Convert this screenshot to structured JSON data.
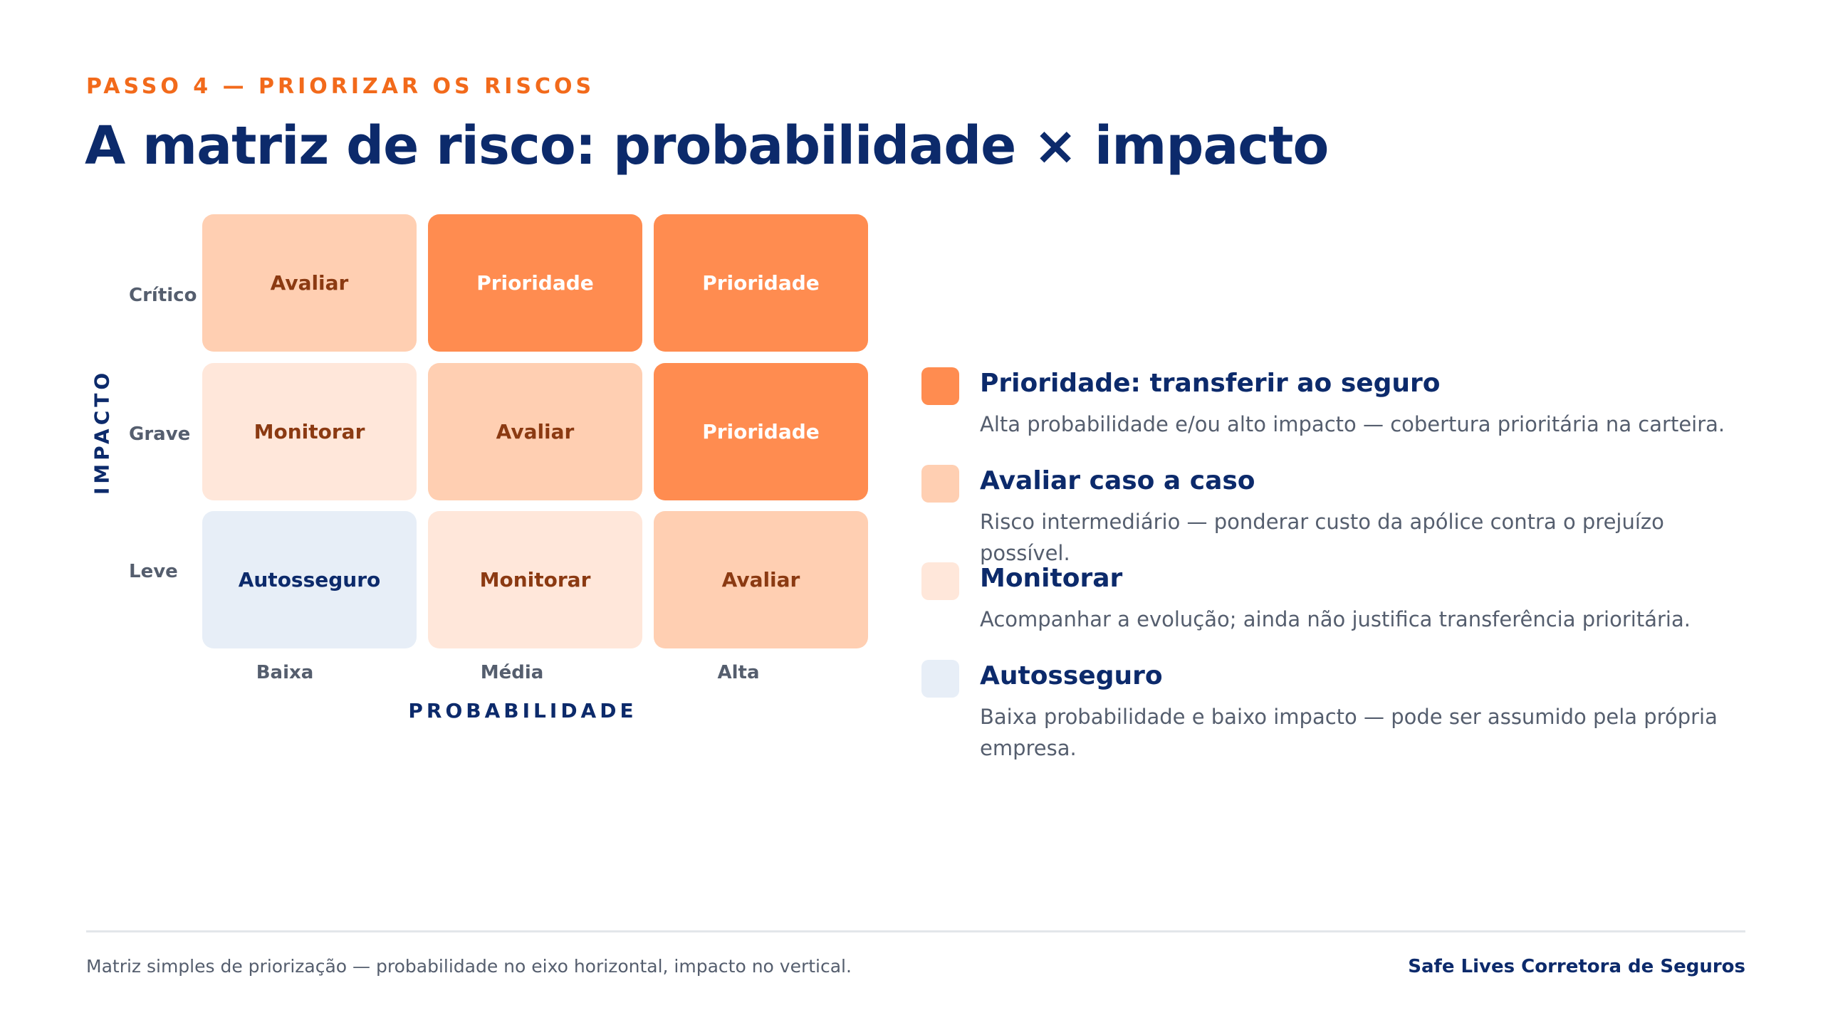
{
  "header": {
    "eyebrow": "PASSO 4 — PRIORIZAR OS RISCOS",
    "title": "A matriz de risco: probabilidade × impacto"
  },
  "matrix": {
    "y_axis_label": "IMPACTO",
    "x_axis_label": "PROBABILIDADE",
    "rows": [
      "Crítico",
      "Grave",
      "Leve"
    ],
    "columns": [
      "Baixa",
      "Média",
      "Alta"
    ],
    "cells": [
      [
        "Avaliar",
        "Prioridade",
        "Prioridade"
      ],
      [
        "Monitorar",
        "Avaliar",
        "Prioridade"
      ],
      [
        "Autosseguro",
        "Monitorar",
        "Avaliar"
      ]
    ]
  },
  "legend": [
    {
      "title": "Prioridade: transferir ao seguro",
      "description": "Alta probabilidade e/ou alto impacto — cobertura prioritária na carteira.",
      "color": "#ff8c50"
    },
    {
      "title": "Avaliar caso a caso",
      "description": "Risco intermediário — ponderar custo da apólice contra o prejuízo possível.",
      "color": "#ffcfb2"
    },
    {
      "title": "Monitorar",
      "description": "Acompanhar a evolução; ainda não justifica transferência prioritária.",
      "color": "#ffe7da"
    },
    {
      "title": "Autosseguro",
      "description": "Baixa probabilidade e baixo impacto — pode ser assumido pela própria empresa.",
      "color": "#e7eef7"
    }
  ],
  "footer": {
    "note": "Matriz simples de priorização — probabilidade no eixo horizontal, impacto no vertical.",
    "brand": "Safe Lives Corretora de Seguros"
  },
  "colors": {
    "accent_orange": "#f26a1b",
    "navy": "#0c2a6b",
    "gray_text": "#555e6e"
  }
}
